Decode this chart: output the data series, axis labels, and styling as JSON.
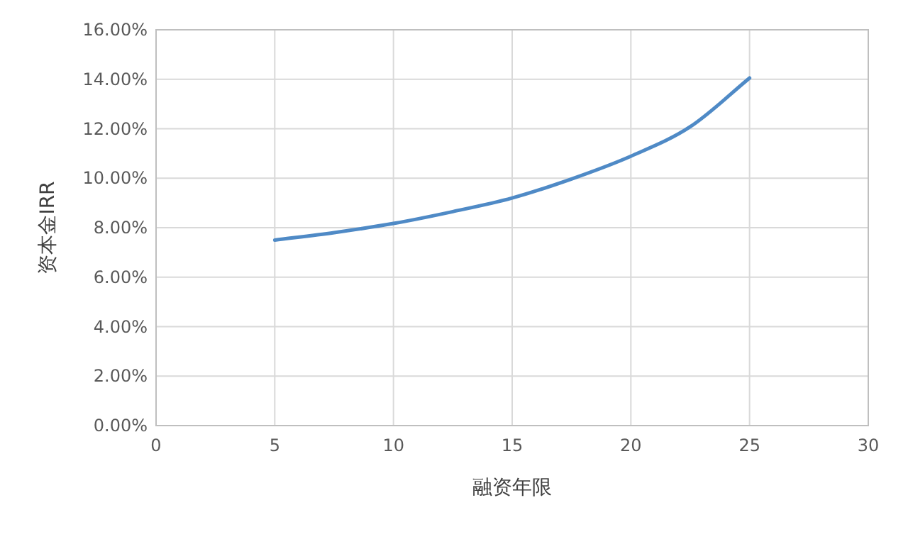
{
  "chart_data": {
    "type": "line",
    "xlabel": "融资年限",
    "ylabel": "资本金IRR",
    "x": [
      5,
      7.5,
      10,
      12.5,
      15,
      17.5,
      20,
      22.5,
      25
    ],
    "series": [
      {
        "color": "#4f8ac6",
        "values": [
          7.5,
          7.8,
          8.17,
          8.65,
          9.2,
          9.97,
          10.89,
          12.08,
          14.05
        ]
      }
    ],
    "xlim": [
      0,
      30
    ],
    "xticks": [
      0,
      5,
      10,
      15,
      20,
      25,
      30
    ],
    "ylim": [
      0,
      16
    ],
    "yticks": [
      {
        "value": 0,
        "label": "0.00%"
      },
      {
        "value": 2,
        "label": "2.00%"
      },
      {
        "value": 4,
        "label": "4.00%"
      },
      {
        "value": 6,
        "label": "6.00%"
      },
      {
        "value": 8,
        "label": "8.00%"
      },
      {
        "value": 10,
        "label": "10.00%"
      },
      {
        "value": 12,
        "label": "12.00%"
      },
      {
        "value": 14,
        "label": "14.00%"
      },
      {
        "value": 16,
        "label": "16.00%"
      }
    ],
    "grid": true,
    "marker": "none",
    "line_style": "solid"
  }
}
